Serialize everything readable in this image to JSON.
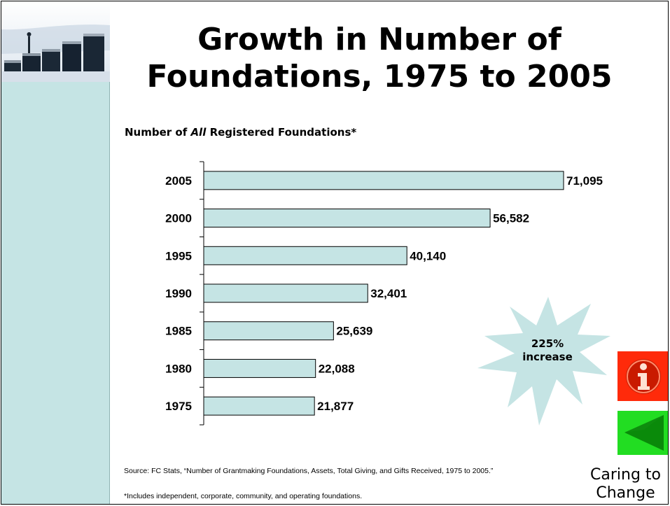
{
  "slide": {
    "title_lines": [
      "Growth in Number of",
      "Foundations, 1975 to 2005"
    ],
    "subtitle_prefix": "Number of ",
    "subtitle_em": "All",
    "subtitle_suffix": " Registered Foundations*",
    "callout_line1": "225%",
    "callout_line2": "increase",
    "brand_line1": "Caring to",
    "brand_line2": "Change",
    "source": "Source:  FC Stats, “Number of Grantmaking Foundations, Assets, Total Giving, and Gifts Received, 1975 to 2005.”",
    "footnote": "*Includes independent, corporate, community, and operating foundations.",
    "info_icon": "info-icon",
    "back_icon": "back-arrow-icon",
    "logo_icon": "coin-stacks-icon"
  },
  "colors": {
    "sidebar": "#c5e4e4",
    "bar_fill": "#c5e4e4",
    "bar_stroke": "#000000",
    "callout": "#c5e4e4",
    "info_button": "#ff2a0a",
    "back_button": "#22dd22"
  },
  "chart_data": {
    "type": "bar",
    "orientation": "horizontal",
    "title": "Number of All Registered Foundations*",
    "categories": [
      "2005",
      "2000",
      "1995",
      "1990",
      "1985",
      "1980",
      "1975"
    ],
    "values": [
      71095,
      56582,
      40140,
      32401,
      25639,
      22088,
      21877
    ],
    "value_labels": [
      "71,095",
      "56,582",
      "40,140",
      "32,401",
      "25,639",
      "22,088",
      "21,877"
    ],
    "xlim": [
      0,
      71095
    ],
    "grid": false,
    "legend": "none"
  }
}
